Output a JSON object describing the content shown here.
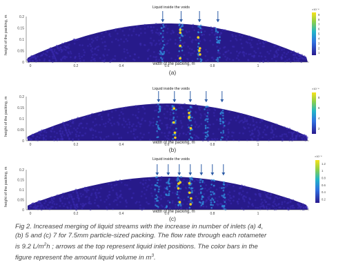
{
  "panels": [
    {
      "label": "(a)",
      "top_label": "Liquid inside the voids",
      "ylabel": "height of the packing, m",
      "xlabel": "width of the packing, m",
      "inlets": 4,
      "yticks": [
        "0.2",
        "0.15",
        "0.1",
        "0.05",
        "0"
      ],
      "xticks": [
        "0",
        "0.2",
        "0.4",
        "0.6",
        "0.8",
        "1"
      ],
      "colorbar_exp": "×10⁻⁴",
      "colorbar_ticks": [
        "9",
        "8",
        "7",
        "6",
        "5",
        "4",
        "3",
        "2",
        "1"
      ]
    },
    {
      "label": "(b)",
      "top_label": "Liquid inside the voids",
      "ylabel": "height of the packing, m",
      "xlabel": "width of the packing, m",
      "inlets": 5,
      "yticks": [
        "0.2",
        "0.15",
        "0.1",
        "0.05",
        "0"
      ],
      "xticks": [
        "0",
        "0.2",
        "0.4",
        "0.6",
        "0.8",
        "1"
      ],
      "colorbar_exp": "×10⁻⁴",
      "colorbar_ticks": [
        "8",
        "6",
        "4",
        "2"
      ]
    },
    {
      "label": "(c)",
      "top_label": "Liquid inside the voids",
      "ylabel": "height of the packing, m",
      "xlabel": "width of the packing, m",
      "inlets": 7,
      "yticks": [
        "0.2",
        "0.15",
        "0.1",
        "0.05",
        "0"
      ],
      "xticks": [
        "0",
        "0.2",
        "0.4",
        "0.6",
        "0.8",
        "1"
      ],
      "colorbar_exp": "×10⁻⁴",
      "colorbar_ticks": [
        "1.2",
        "1",
        "0.8",
        "0.6",
        "0.4",
        "0.2"
      ]
    }
  ],
  "caption": {
    "line1": "Fig 2. Increased merging of liquid streams with the increase in number of inlets (a) 4,",
    "line2": "(b) 5 and (c) 7 for 7.5mm particle-sized packing. The flow rate through each rotameter",
    "line3a": "is 9.2 L/m",
    "line3b": "h ; arrows at the top represent liquid inlet positions. The color bars in the",
    "line4a": "figure represent the amount liquid volume in m",
    "line4b": "."
  },
  "colors": {
    "background": "#ffffff",
    "packing_dark": "#271a8a",
    "packing": "#3a2bb0",
    "stream": "#2f88d8",
    "stream_hot": "#f2d21a",
    "arrow": "#2b5aa6"
  }
}
